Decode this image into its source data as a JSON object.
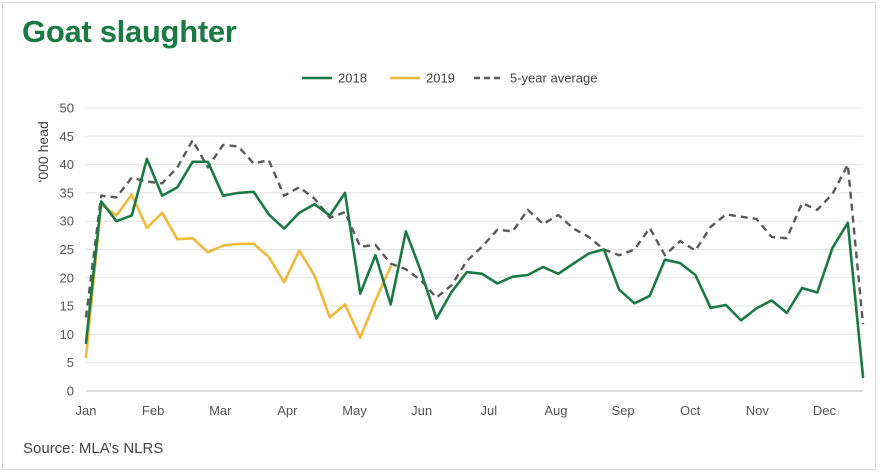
{
  "title": "Goat slaughter",
  "source": "Source: MLA’s NLRS",
  "colors": {
    "title": "#1a7a44",
    "series2018": "#1a7a44",
    "series2019": "#f0b93a",
    "average": "#595959"
  },
  "chart_data": {
    "type": "line",
    "ylabel": "‘000 head",
    "ylim": [
      0,
      50
    ],
    "yticks": [
      0,
      5,
      10,
      15,
      20,
      25,
      30,
      35,
      40,
      45,
      50
    ],
    "xlabels": [
      "Jan",
      "Feb",
      "Mar",
      "Apr",
      "May",
      "Jun",
      "Jul",
      "Aug",
      "Sep",
      "Oct",
      "Nov",
      "Dec"
    ],
    "xlim": [
      1,
      52
    ],
    "grid": true,
    "legend_position": "top-center",
    "series": [
      {
        "name": "2018",
        "style": "solid",
        "x": [
          1,
          2,
          3,
          4,
          5,
          6,
          7,
          8,
          9,
          10,
          11,
          12,
          13,
          14,
          15,
          16,
          17,
          18,
          19,
          20,
          21,
          22,
          23,
          24,
          25,
          26,
          27,
          28,
          29,
          30,
          31,
          32,
          33,
          34,
          35,
          36,
          37,
          38,
          39,
          40,
          41,
          42,
          43,
          44,
          45,
          46,
          47,
          48,
          49,
          50,
          51,
          52
        ],
        "values": [
          8.5,
          33.5,
          30,
          31,
          41,
          34.5,
          36,
          40.5,
          40.5,
          34.5,
          35,
          35.2,
          31.2,
          28.7,
          31.5,
          33,
          31,
          35,
          17.2,
          24,
          15.3,
          28.2,
          21,
          12.8,
          17.5,
          21,
          20.7,
          19,
          20.2,
          20.5,
          21.9,
          20.7,
          22.5,
          24.3,
          25,
          17.9,
          15.5,
          16.8,
          23.2,
          22.6,
          20.5,
          14.7,
          15.2,
          12.5,
          14.6,
          16,
          13.8,
          18.2,
          17.4,
          25.3,
          29.7,
          2.5
        ]
      },
      {
        "name": "2019",
        "style": "solid",
        "x": [
          1,
          2,
          3,
          4,
          5,
          6,
          7,
          8,
          9,
          10,
          11,
          12,
          13,
          14,
          15,
          16,
          17,
          18,
          19,
          20,
          21
        ],
        "values": [
          6,
          33,
          31,
          34.7,
          28.8,
          31.5,
          26.8,
          27,
          24.5,
          25.7,
          26,
          26,
          23.7,
          19.2,
          24.8,
          20.4,
          13,
          15.3,
          9.4,
          16,
          22
        ]
      },
      {
        "name": "5-year average",
        "style": "dashed",
        "x": [
          1,
          2,
          3,
          4,
          5,
          6,
          7,
          8,
          9,
          10,
          11,
          12,
          13,
          14,
          15,
          16,
          17,
          18,
          19,
          20,
          21,
          22,
          23,
          24,
          25,
          26,
          27,
          28,
          29,
          30,
          31,
          32,
          33,
          34,
          35,
          36,
          37,
          38,
          39,
          40,
          41,
          42,
          43,
          44,
          45,
          46,
          47,
          48,
          49,
          50,
          51,
          52
        ],
        "values": [
          13,
          34.5,
          34.2,
          37.7,
          37,
          36.7,
          39.5,
          44.3,
          39.5,
          43.5,
          43.2,
          40.2,
          40.8,
          34.5,
          36,
          34,
          30.6,
          31.6,
          25.5,
          25.8,
          22.5,
          21.5,
          19.5,
          16.5,
          18.7,
          23,
          25.5,
          28.5,
          28.2,
          32,
          29.5,
          31.1,
          28.7,
          27.2,
          25,
          24,
          25,
          28.8,
          24,
          26.5,
          24.8,
          29,
          31.2,
          30.8,
          30.4,
          27.2,
          27,
          33.2,
          32,
          34.8,
          40,
          11.8
        ]
      }
    ]
  }
}
